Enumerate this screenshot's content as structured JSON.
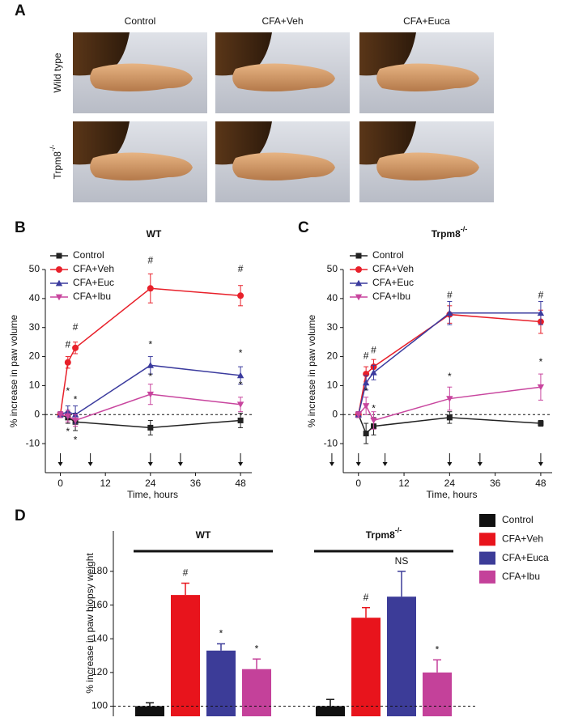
{
  "panel_a": {
    "label": "A",
    "columns": [
      "Control",
      "CFA+Veh",
      "CFA+Euca"
    ],
    "rows": [
      "Wild type",
      "Trpm8-/-"
    ]
  },
  "chart_data": [
    {
      "type": "line",
      "panel_label": "B",
      "title": "WT",
      "x_label": "Time, hours",
      "y_label": "% increase in paw volume",
      "x": [
        0,
        2,
        4,
        24,
        48
      ],
      "xlim": [
        -4,
        51
      ],
      "xticks": [
        0,
        12,
        24,
        36,
        48
      ],
      "ylim": [
        -20,
        50
      ],
      "yticks": [
        -10,
        0,
        10,
        20,
        30,
        40,
        50
      ],
      "reference_line": 0,
      "series": [
        {
          "name": "Control",
          "color": "#222222",
          "marker": "square",
          "values": [
            0,
            -1,
            -2.5,
            -4.5,
            -2
          ],
          "errors": [
            1,
            2,
            3,
            2.5,
            2.5
          ]
        },
        {
          "name": "CFA+Veh",
          "color": "#e8202a",
          "marker": "circle",
          "values": [
            0,
            18,
            23,
            43.5,
            41
          ],
          "errors": [
            1,
            2,
            2,
            5,
            3.5
          ]
        },
        {
          "name": "CFA+Euc",
          "color": "#3b3b9e",
          "marker": "triangle-up",
          "values": [
            0,
            1,
            0,
            17,
            13.5
          ],
          "errors": [
            1,
            2,
            3,
            3,
            3
          ]
        },
        {
          "name": "CFA+Ibu",
          "color": "#c8459e",
          "marker": "triangle-down",
          "values": [
            0,
            -0.5,
            -2,
            7,
            3.5
          ],
          "errors": [
            1,
            2,
            2,
            3.5,
            2.5
          ]
        }
      ],
      "annotations": [
        {
          "text": "#",
          "x": 2,
          "y": 24
        },
        {
          "text": "#",
          "x": 4,
          "y": 30
        },
        {
          "text": "#",
          "x": 24,
          "y": 53
        },
        {
          "text": "#",
          "x": 48,
          "y": 50
        },
        {
          "text": "*",
          "x": 2,
          "y": 8
        },
        {
          "text": "*",
          "x": 2,
          "y": -6
        },
        {
          "text": "*",
          "x": 4,
          "y": 5
        },
        {
          "text": "*",
          "x": 4,
          "y": -9
        },
        {
          "text": "*",
          "x": 24,
          "y": 24
        },
        {
          "text": "*",
          "x": 24,
          "y": 13
        },
        {
          "text": "*",
          "x": 48,
          "y": 21
        },
        {
          "text": "*",
          "x": 48,
          "y": 10
        }
      ],
      "dosing_times": [
        0,
        8,
        24,
        32,
        48
      ]
    },
    {
      "type": "line",
      "panel_label": "C",
      "title": "Trpm8-/-",
      "x_label": "Time, hours",
      "y_label": "% increase in paw volume",
      "x": [
        0,
        2,
        4,
        24,
        48
      ],
      "xlim": [
        -4,
        51
      ],
      "xticks": [
        0,
        12,
        24,
        36,
        48
      ],
      "ylim": [
        -20,
        50
      ],
      "yticks": [
        -10,
        0,
        10,
        20,
        30,
        40,
        50
      ],
      "reference_line": 0,
      "series": [
        {
          "name": "Control",
          "color": "#222222",
          "marker": "square",
          "values": [
            0,
            -6.5,
            -4,
            -1,
            -3
          ],
          "errors": [
            1,
            3.5,
            3,
            2,
            1
          ]
        },
        {
          "name": "CFA+Veh",
          "color": "#e8202a",
          "marker": "circle",
          "values": [
            0,
            14,
            16.5,
            34.5,
            32
          ],
          "errors": [
            1,
            2.5,
            2.5,
            3,
            4
          ]
        },
        {
          "name": "CFA+Euc",
          "color": "#3b3b9e",
          "marker": "triangle-up",
          "values": [
            0,
            11,
            14.5,
            35,
            35
          ],
          "errors": [
            1,
            2.5,
            2.5,
            4,
            4
          ]
        },
        {
          "name": "CFA+Ibu",
          "color": "#c8459e",
          "marker": "triangle-down",
          "values": [
            0,
            3,
            -2,
            5.5,
            9.5
          ],
          "errors": [
            1,
            3,
            3,
            4,
            4.5
          ]
        }
      ],
      "annotations": [
        {
          "text": "#",
          "x": 2,
          "y": 20
        },
        {
          "text": "#",
          "x": 4,
          "y": 22
        },
        {
          "text": "#",
          "x": 24,
          "y": 41
        },
        {
          "text": "#",
          "x": 48,
          "y": 41
        },
        {
          "text": "*",
          "x": 2,
          "y": 8
        },
        {
          "text": "*",
          "x": 4,
          "y": 2
        },
        {
          "text": "*",
          "x": 24,
          "y": 13
        },
        {
          "text": "*",
          "x": 48,
          "y": 18
        }
      ],
      "dosing_times": [
        -7,
        0,
        7,
        24,
        32,
        48
      ]
    },
    {
      "type": "bar",
      "panel_label": "D",
      "y_label": "% increase in paw biopsy weight",
      "categories": [
        "WT",
        "Trpm8-/-"
      ],
      "ylim": [
        94,
        204
      ],
      "yticks": [
        100,
        120,
        140,
        160,
        180
      ],
      "reference_line": 100,
      "series": [
        {
          "name": "Control",
          "color": "#111111",
          "values": [
            100,
            100
          ],
          "errors": [
            2,
            4
          ],
          "annotations": [
            null,
            null
          ]
        },
        {
          "name": "CFA+Veh",
          "color": "#e8141c",
          "values": [
            166,
            152.5
          ],
          "errors": [
            7,
            6
          ],
          "annotations": [
            "#",
            "#"
          ]
        },
        {
          "name": "CFA+Euca",
          "color": "#3c3c98",
          "values": [
            133,
            165
          ],
          "errors": [
            4,
            15
          ],
          "annotations": [
            "*",
            "NS"
          ]
        },
        {
          "name": "CFA+Ibu",
          "color": "#c4419a",
          "values": [
            122,
            120
          ],
          "errors": [
            6,
            7.5
          ],
          "annotations": [
            "*",
            "*"
          ]
        }
      ]
    }
  ]
}
